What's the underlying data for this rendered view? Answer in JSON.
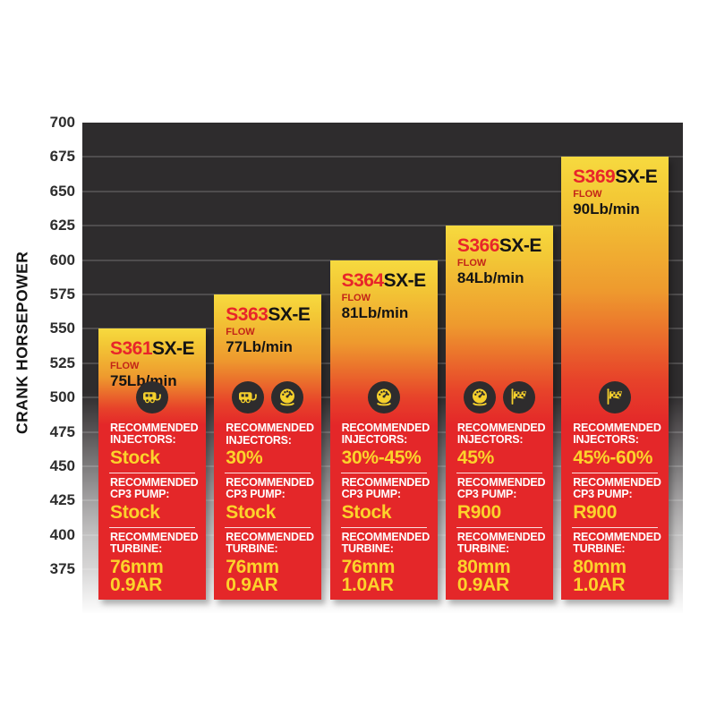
{
  "colors": {
    "plot_bg_dark": "#2e2c2d",
    "bar_yellow_top": "#f7da3f",
    "bar_orange_mid": "#ee9a2e",
    "bar_red": "#e42729",
    "model_number_red": "#e8252a",
    "model_suffix_black": "#141414",
    "flow_label_red": "#c32418",
    "value_yellow": "#fcd32b",
    "section_label_white": "#ffffff",
    "axis_text": "#2d2d2d"
  },
  "chart_data": {
    "type": "bar",
    "title": "",
    "xlabel": "",
    "ylabel": "CRANK HORSEPOWER",
    "ylim": [
      375,
      700
    ],
    "yticks": [
      700,
      675,
      650,
      625,
      600,
      575,
      550,
      525,
      500,
      475,
      450,
      425,
      400,
      375
    ],
    "grid": "horizontal",
    "legend": "none",
    "bars": [
      {
        "model": "S361",
        "suffix": "SX-E",
        "flow_label": "FLOW",
        "flow": "75Lb/min",
        "crank_hp": 550,
        "icons": [
          "camper-icon"
        ],
        "sections": [
          {
            "label": "RECOMMENDED\nINJECTORS:",
            "value": "Stock"
          },
          {
            "label": "RECOMMENDED\nCP3 PUMP:",
            "value": "Stock"
          },
          {
            "label": "RECOMMENDED\nTURBINE:",
            "value": "76mm\n0.9AR"
          }
        ]
      },
      {
        "model": "S363",
        "suffix": "SX-E",
        "flow_label": "FLOW",
        "flow": "77Lb/min",
        "crank_hp": 575,
        "icons": [
          "camper-icon",
          "gauge-icon"
        ],
        "sections": [
          {
            "label": "RECOMMENDED\nINJECTORS:",
            "value": "30%"
          },
          {
            "label": "RECOMMENDED\nCP3 PUMP:",
            "value": "Stock"
          },
          {
            "label": "RECOMMENDED\nTURBINE:",
            "value": "76mm\n0.9AR"
          }
        ]
      },
      {
        "model": "S364",
        "suffix": "SX-E",
        "flow_label": "FLOW",
        "flow": "81Lb/min",
        "crank_hp": 600,
        "icons": [
          "gauge-icon"
        ],
        "sections": [
          {
            "label": "RECOMMENDED\nINJECTORS:",
            "value": "30%-45%"
          },
          {
            "label": "RECOMMENDED\nCP3 PUMP:",
            "value": "Stock"
          },
          {
            "label": "RECOMMENDED\nTURBINE:",
            "value": "76mm\n1.0AR"
          }
        ]
      },
      {
        "model": "S366",
        "suffix": "SX-E",
        "flow_label": "FLOW",
        "flow": "84Lb/min",
        "crank_hp": 625,
        "icons": [
          "gauge-icon",
          "flag-icon"
        ],
        "sections": [
          {
            "label": "RECOMMENDED\nINJECTORS:",
            "value": "45%"
          },
          {
            "label": "RECOMMENDED\nCP3 PUMP:",
            "value": "R900"
          },
          {
            "label": "RECOMMENDED\nTURBINE:",
            "value": "80mm\n0.9AR"
          }
        ]
      },
      {
        "model": "S369",
        "suffix": "SX-E",
        "flow_label": "FLOW",
        "flow": "90Lb/min",
        "crank_hp": 675,
        "icons": [
          "flag-icon"
        ],
        "sections": [
          {
            "label": "RECOMMENDED\nINJECTORS:",
            "value": "45%-60%"
          },
          {
            "label": "RECOMMENDED\nCP3 PUMP:",
            "value": "R900"
          },
          {
            "label": "RECOMMENDED\nTURBINE:",
            "value": "80mm\n1.0AR"
          }
        ]
      }
    ]
  }
}
